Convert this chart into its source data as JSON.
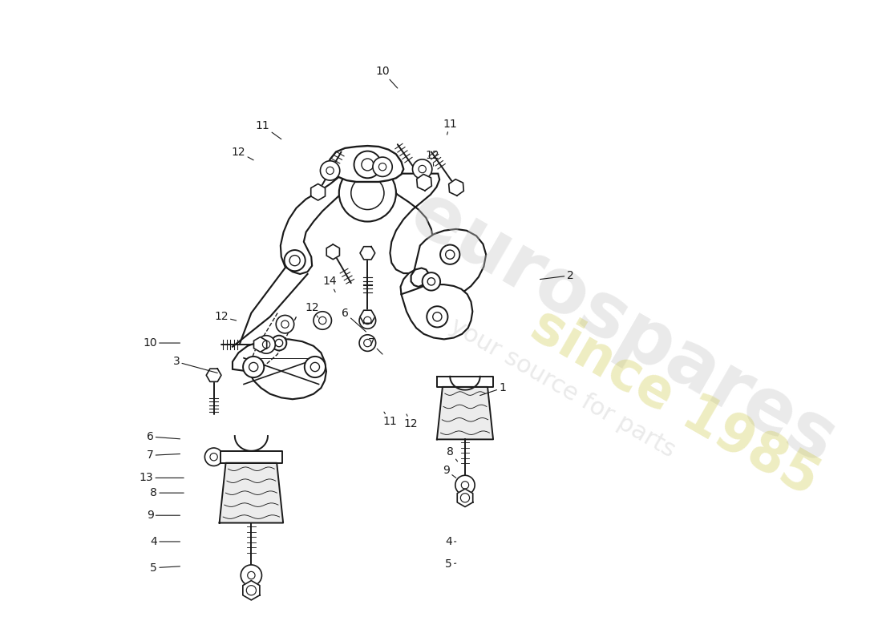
{
  "bg_color": "#ffffff",
  "line_color": "#1a1a1a",
  "lw": 1.4,
  "watermark1": "eurospares",
  "watermark2": "since 1985",
  "watermark3": "your source for parts",
  "wm_color": "#c8c8c8",
  "wm_color2": "#ccc840",
  "wm_alpha": 0.38,
  "labels": [
    [
      "1",
      670,
      490,
      640,
      500
    ],
    [
      "2",
      760,
      340,
      720,
      345
    ],
    [
      "3",
      235,
      455,
      290,
      470
    ],
    [
      "4",
      205,
      695,
      240,
      695
    ],
    [
      "5",
      205,
      730,
      240,
      728
    ],
    [
      "6",
      200,
      555,
      240,
      558
    ],
    [
      "6",
      460,
      390,
      488,
      415
    ],
    [
      "7",
      200,
      580,
      240,
      578
    ],
    [
      "7",
      495,
      430,
      510,
      445
    ],
    [
      "8",
      205,
      630,
      245,
      630
    ],
    [
      "8",
      600,
      575,
      610,
      588
    ],
    [
      "9",
      200,
      660,
      240,
      660
    ],
    [
      "9",
      595,
      600,
      608,
      610
    ],
    [
      "10",
      200,
      430,
      240,
      430
    ],
    [
      "10",
      510,
      68,
      530,
      90
    ],
    [
      "11",
      350,
      140,
      375,
      158
    ],
    [
      "11",
      600,
      138,
      596,
      152
    ],
    [
      "12",
      318,
      175,
      338,
      186
    ],
    [
      "12",
      577,
      180,
      578,
      194
    ],
    [
      "12",
      295,
      395,
      315,
      400
    ],
    [
      "12",
      416,
      383,
      424,
      396
    ],
    [
      "13",
      195,
      610,
      245,
      610
    ],
    [
      "14",
      440,
      348,
      447,
      362
    ],
    [
      "4",
      598,
      695,
      608,
      695
    ],
    [
      "5",
      598,
      725,
      608,
      724
    ],
    [
      "11",
      520,
      535,
      512,
      522
    ],
    [
      "12",
      548,
      538,
      542,
      525
    ]
  ],
  "fig_w": 11.0,
  "fig_h": 8.0,
  "dpi": 100
}
